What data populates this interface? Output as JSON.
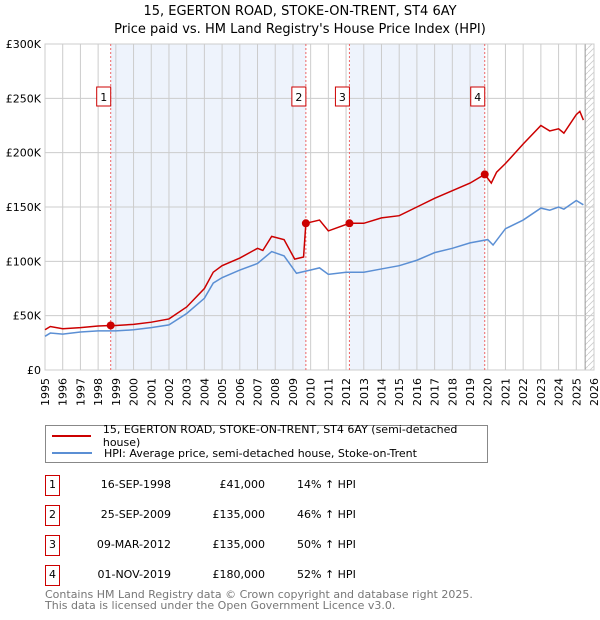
{
  "title": "15, EGERTON ROAD, STOKE-ON-TRENT, ST4 6AY",
  "subtitle": "Price paid vs. HM Land Registry's House Price Index (HPI)",
  "colors": {
    "property": "#cc0000",
    "hpi": "#5b8fd4",
    "shade": "#eef3fc"
  },
  "chart_data": {
    "type": "line",
    "title": "15, EGERTON ROAD, STOKE-ON-TRENT, ST4 6AY",
    "xlim": [
      1995,
      2026
    ],
    "ylim": [
      0,
      300000
    ],
    "x_ticks": [
      "1995",
      "1996",
      "1997",
      "1998",
      "1999",
      "2000",
      "2001",
      "2002",
      "2003",
      "2004",
      "2005",
      "2006",
      "2007",
      "2008",
      "2009",
      "2010",
      "2011",
      "2012",
      "2013",
      "2014",
      "2015",
      "2016",
      "2017",
      "2018",
      "2019",
      "2020",
      "2021",
      "2022",
      "2023",
      "2024",
      "2025",
      "2026"
    ],
    "y_ticks": [
      {
        "v": 0,
        "label": "£0"
      },
      {
        "v": 50000,
        "label": "£50K"
      },
      {
        "v": 100000,
        "label": "£100K"
      },
      {
        "v": 150000,
        "label": "£150K"
      },
      {
        "v": 200000,
        "label": "£200K"
      },
      {
        "v": 250000,
        "label": "£250K"
      },
      {
        "v": 300000,
        "label": "£300K"
      }
    ],
    "forecast_from": 2025.5,
    "series": [
      {
        "name": "15, EGERTON ROAD, STOKE-ON-TRENT, ST4 6AY (semi-detached house)",
        "color": "#cc0000",
        "points": [
          [
            1995,
            37000
          ],
          [
            1995.3,
            40000
          ],
          [
            1996,
            38000
          ],
          [
            1997,
            39000
          ],
          [
            1998,
            40500
          ],
          [
            1998.71,
            41000
          ],
          [
            1999,
            41000
          ],
          [
            2000,
            42000
          ],
          [
            2001,
            44000
          ],
          [
            2002,
            47000
          ],
          [
            2003,
            58000
          ],
          [
            2004,
            75000
          ],
          [
            2004.5,
            90000
          ],
          [
            2005,
            96000
          ],
          [
            2006,
            103000
          ],
          [
            2007,
            112000
          ],
          [
            2007.3,
            110000
          ],
          [
            2007.8,
            123000
          ],
          [
            2008.5,
            120000
          ],
          [
            2009.1,
            102000
          ],
          [
            2009.6,
            104000
          ],
          [
            2009.73,
            135000
          ],
          [
            2010.5,
            138000
          ],
          [
            2011,
            128000
          ],
          [
            2012.19,
            135000
          ],
          [
            2013,
            135000
          ],
          [
            2014,
            140000
          ],
          [
            2015,
            142000
          ],
          [
            2016,
            150000
          ],
          [
            2017,
            158000
          ],
          [
            2018,
            165000
          ],
          [
            2019,
            172000
          ],
          [
            2019.83,
            180000
          ],
          [
            2020.2,
            172000
          ],
          [
            2020.5,
            182000
          ],
          [
            2021,
            190000
          ],
          [
            2022,
            208000
          ],
          [
            2023,
            225000
          ],
          [
            2023.5,
            220000
          ],
          [
            2024,
            222000
          ],
          [
            2024.3,
            218000
          ],
          [
            2025,
            235000
          ],
          [
            2025.2,
            238000
          ],
          [
            2025.4,
            230000
          ]
        ]
      },
      {
        "name": "HPI: Average price, semi-detached house, Stoke-on-Trent",
        "color": "#5b8fd4",
        "points": [
          [
            1995,
            31000
          ],
          [
            1995.3,
            34000
          ],
          [
            1996,
            33000
          ],
          [
            1997,
            35000
          ],
          [
            1998,
            36000
          ],
          [
            1999,
            36000
          ],
          [
            2000,
            37000
          ],
          [
            2001,
            39000
          ],
          [
            2002,
            41500
          ],
          [
            2003,
            52000
          ],
          [
            2004,
            66000
          ],
          [
            2004.5,
            80000
          ],
          [
            2005,
            85000
          ],
          [
            2006,
            92000
          ],
          [
            2007,
            98000
          ],
          [
            2007.8,
            109000
          ],
          [
            2008.5,
            105000
          ],
          [
            2009.2,
            89000
          ],
          [
            2010,
            92000
          ],
          [
            2010.5,
            94000
          ],
          [
            2011,
            88000
          ],
          [
            2012,
            90000
          ],
          [
            2013,
            90000
          ],
          [
            2014,
            93000
          ],
          [
            2015,
            96000
          ],
          [
            2016,
            101000
          ],
          [
            2017,
            108000
          ],
          [
            2018,
            112000
          ],
          [
            2019,
            117000
          ],
          [
            2020,
            120000
          ],
          [
            2020.3,
            115000
          ],
          [
            2021,
            130000
          ],
          [
            2022,
            138000
          ],
          [
            2023,
            149000
          ],
          [
            2023.5,
            147000
          ],
          [
            2024,
            150000
          ],
          [
            2024.3,
            148000
          ],
          [
            2025,
            156000
          ],
          [
            2025.4,
            152000
          ]
        ]
      }
    ],
    "sales": [
      {
        "label": "1",
        "x": 1998.71,
        "y": 41000
      },
      {
        "label": "2",
        "x": 2009.73,
        "y": 135000
      },
      {
        "label": "3",
        "x": 2012.19,
        "y": 135000
      },
      {
        "label": "4",
        "x": 2019.83,
        "y": 180000
      }
    ]
  },
  "legend": {
    "property": "15, EGERTON ROAD, STOKE-ON-TRENT, ST4 6AY (semi-detached house)",
    "hpi": "HPI: Average price, semi-detached house, Stoke-on-Trent"
  },
  "transactions": [
    {
      "n": "1",
      "date": "16-SEP-1998",
      "price": "£41,000",
      "hpi": "14% ↑ HPI"
    },
    {
      "n": "2",
      "date": "25-SEP-2009",
      "price": "£135,000",
      "hpi": "46% ↑ HPI"
    },
    {
      "n": "3",
      "date": "09-MAR-2012",
      "price": "£135,000",
      "hpi": "50% ↑ HPI"
    },
    {
      "n": "4",
      "date": "01-NOV-2019",
      "price": "£180,000",
      "hpi": "52% ↑ HPI"
    }
  ],
  "footer": {
    "line1": "Contains HM Land Registry data © Crown copyright and database right 2025.",
    "line2": "This data is licensed under the Open Government Licence v3.0."
  }
}
